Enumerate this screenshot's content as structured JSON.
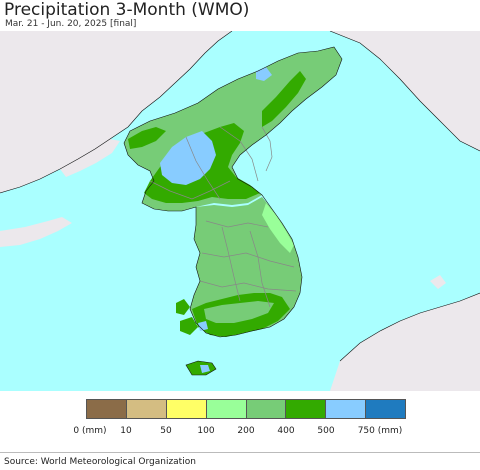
{
  "header": {
    "title": "Precipitation 3-Month (WMO)",
    "subtitle": "Mar. 21 - Jun. 20, 2025 [final]"
  },
  "legend": {
    "labels": [
      "0 (mm)",
      "10",
      "50",
      "100",
      "200",
      "400",
      "500",
      "750 (mm)"
    ],
    "colors": [
      "#8b6c48",
      "#d4bd82",
      "#ffff66",
      "#99ff99",
      "#77cc77",
      "#33aa00",
      "#88ccff",
      "#1f7bbf"
    ]
  },
  "map_colors": {
    "ocean": "#aaffff",
    "foreign_land": "#ece8ec",
    "cat_200_400": "#77cc77",
    "cat_400_500": "#33aa00",
    "cat_500_750": "#88ccff",
    "cat_100_200": "#99ff99"
  },
  "footer": {
    "source": "Source: World Meteorological Organization"
  }
}
